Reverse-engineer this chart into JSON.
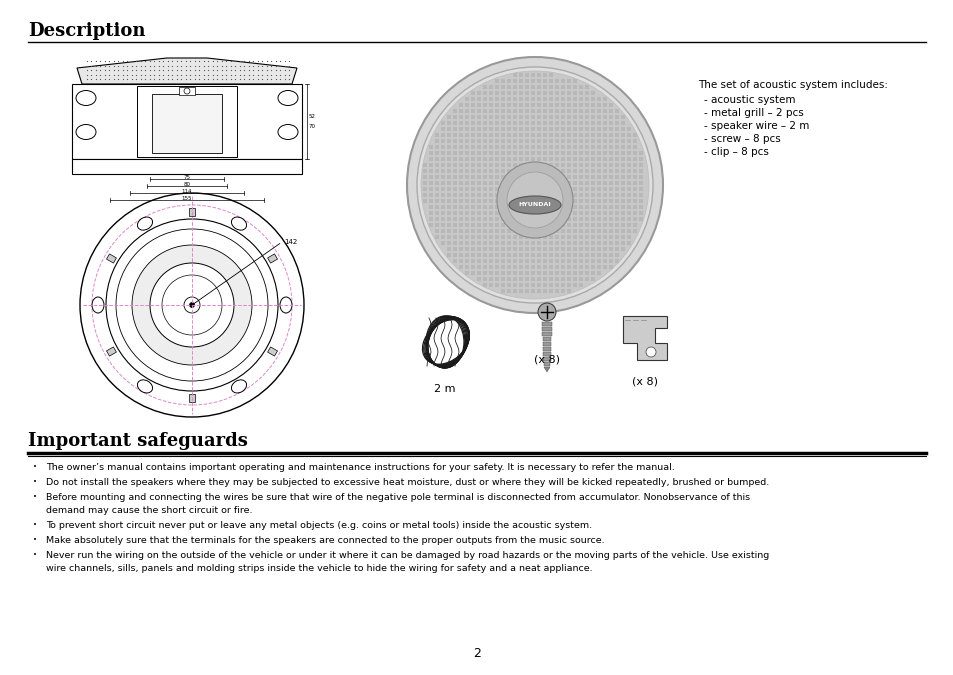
{
  "title_description": "Description",
  "title_safeguards": "Important safeguards",
  "bg_color": "#ffffff",
  "text_color": "#000000",
  "includes_header": "The set of acoustic system includes:",
  "includes_items": [
    "acoustic system",
    "metal grill – 2 pcs",
    "speaker wire – 2 m",
    "screw – 8 pcs",
    "clip – 8 pcs"
  ],
  "labels_below": [
    "2 m",
    "(x 8)",
    "(x 8)"
  ],
  "page_number": "2",
  "safeguard1": "The owner’s manual contains important operating and maintenance instructions for your safety. It is necessary to refer the manual.",
  "safeguard2": "Do not install the speakers where they may be subjected to excessive heat moisture, dust or where they will be kicked repeatedly, brushed or bumped.",
  "safeguard3a": "Before mounting and connecting the wires be sure that wire of the negative pole terminal is disconnected from accumulator. Nonobservance of this",
  "safeguard3b": "demand may cause the short circuit or fire.",
  "safeguard4": "To prevent short circuit never put or leave any metal objects (e.g. coins or metal tools) inside the acoustic system.",
  "safeguard5": "Make absolutely sure that the terminals for the speakers are connected to the proper outputs from the music source.",
  "safeguard6a": "Never run the wiring on the outside of the vehicle or under it where it can be damaged by road hazards or the moving parts of the vehicle. Use existing",
  "safeguard6b": "wire channels, sills, panels and molding strips inside the vehicle to hide the wiring for safety and a neat appliance."
}
